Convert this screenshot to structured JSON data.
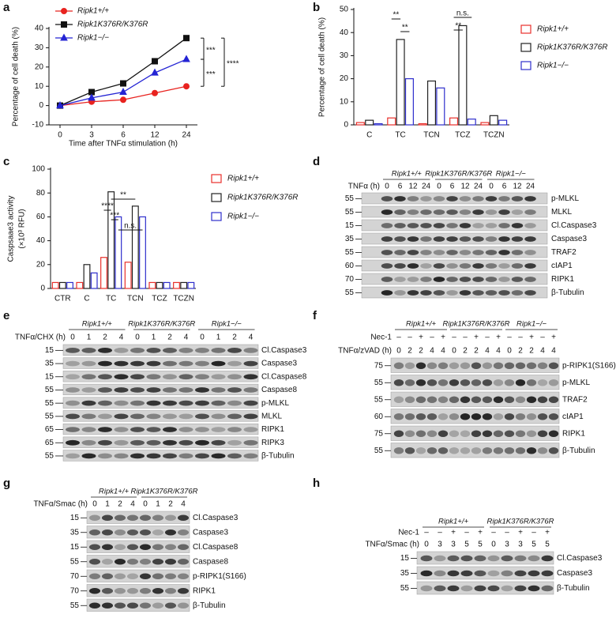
{
  "chart_data": [
    {
      "type": "line",
      "panel": "a",
      "x_label": "Time after TNFα stimulation (h)",
      "y_label": [
        "Percentage of cell death (%)"
      ],
      "categories": [
        "0",
        "3",
        "6",
        "12",
        "24"
      ],
      "ylim": [
        -10,
        40
      ],
      "yticks": [
        -10,
        0,
        10,
        20,
        30,
        40
      ],
      "series": [
        {
          "name": "Ripk1+/+",
          "color": "#e8231f",
          "marker": "circle",
          "values": [
            0,
            2,
            3,
            6.5,
            10
          ]
        },
        {
          "name": "Ripk1K376R/K376R",
          "color": "#111111",
          "marker": "square",
          "values": [
            0,
            7,
            11.5,
            23,
            35
          ]
        },
        {
          "name": "Ripk1−/−",
          "color": "#2424d4",
          "marker": "triangle",
          "values": [
            0,
            4,
            7,
            17,
            24
          ]
        }
      ],
      "annotations": [
        "***",
        "****",
        "***"
      ]
    },
    {
      "type": "bar",
      "panel": "b",
      "y_label": [
        "Percentage of cell death (%)"
      ],
      "categories": [
        "C",
        "TC",
        "TCN",
        "TCZ",
        "TCZN"
      ],
      "ylim": [
        0,
        50
      ],
      "yticks": [
        0,
        10,
        20,
        30,
        40,
        50
      ],
      "series": [
        {
          "name": "Ripk1+/+",
          "color": "#e8302b",
          "values": [
            1,
            3,
            0.5,
            3,
            1
          ]
        },
        {
          "name": "Ripk1K376R/K376R",
          "color": "#222222",
          "values": [
            2,
            37,
            19,
            43,
            4
          ]
        },
        {
          "name": "Ripk1−/−",
          "color": "#2e2ecc",
          "values": [
            0.5,
            20,
            16,
            2.5,
            2
          ]
        }
      ],
      "annotations": [
        "**",
        "**",
        "n.s.",
        "**"
      ]
    },
    {
      "type": "bar",
      "panel": "c",
      "y_label": [
        "Caspsaae3 activity",
        "(×10³ RFU)"
      ],
      "categories": [
        "CTR",
        "C",
        "TC",
        "TCN",
        "TCZ",
        "TCZN"
      ],
      "ylim": [
        0,
        100
      ],
      "yticks": [
        0,
        20,
        40,
        60,
        80,
        100
      ],
      "series": [
        {
          "name": "Ripk1+/+",
          "color": "#e8302b",
          "values": [
            5,
            5,
            26,
            22,
            5,
            5
          ]
        },
        {
          "name": "Ripk1K376R/K376R",
          "color": "#222222",
          "values": [
            5,
            20,
            81,
            69,
            5,
            5
          ]
        },
        {
          "name": "Ripk1−/−",
          "color": "#2e2ecc",
          "values": [
            5,
            13,
            60,
            60,
            5,
            5
          ]
        }
      ],
      "annotations": [
        "**",
        "****",
        "***",
        "n.s."
      ]
    }
  ],
  "blots": [
    {
      "panel": "d",
      "groups": [
        "Ripk1+/+",
        "Ripk1K376R/K376R",
        "Ripk1−/−"
      ],
      "conditions": [
        {
          "label": "TNFα (h)",
          "lanes": [
            "0",
            "6",
            "12",
            "24",
            "0",
            "6",
            "12",
            "24",
            "0",
            "6",
            "12",
            "24"
          ]
        }
      ],
      "rows": [
        {
          "marker": 55,
          "label": "p-MLKL"
        },
        {
          "marker": 55,
          "label": "MLKL"
        },
        {
          "marker": 15,
          "label": "Cl.Caspase3"
        },
        {
          "marker": 35,
          "label": "Caspase3"
        },
        {
          "marker": 55,
          "label": "TRAF2"
        },
        {
          "marker": 60,
          "label": "cIAP1"
        },
        {
          "marker": 70,
          "label": "RIPK1"
        },
        {
          "marker": 55,
          "label": "β-Tubulin"
        }
      ]
    },
    {
      "panel": "e",
      "groups": [
        "Ripk1+/+",
        "Ripk1K376R/K376R",
        "Ripk1−/−"
      ],
      "conditions": [
        {
          "label": "TNFα/CHX (h)",
          "lanes": [
            "0",
            "1",
            "2",
            "4",
            "0",
            "1",
            "2",
            "4",
            "0",
            "1",
            "2",
            "4"
          ]
        }
      ],
      "rows": [
        {
          "marker": 15,
          "label": "Cl.Caspase3"
        },
        {
          "marker": 35,
          "label": "Caspase3"
        },
        {
          "marker": 15,
          "label": "Cl.Caspase8"
        },
        {
          "marker": 55,
          "label": "Caspase8"
        },
        {
          "marker": 55,
          "label": "p-MLKL"
        },
        {
          "marker": 55,
          "label": "MLKL"
        },
        {
          "marker": 65,
          "label": "RIPK1"
        },
        {
          "marker": 65,
          "label": "RIPK3"
        },
        {
          "marker": 55,
          "label": "β-Tubulin"
        }
      ]
    },
    {
      "panel": "f",
      "groups": [
        "Ripk1+/+",
        "Ripk1K376R/K376R",
        "Ripk1−/−"
      ],
      "conditions": [
        {
          "label": "Nec-1",
          "lanes": [
            "–",
            "–",
            "+",
            "–",
            "+",
            "–",
            "–",
            "+",
            "–",
            "+",
            "–",
            "–",
            "+",
            "–",
            "+"
          ]
        },
        {
          "label": "TNFα/zVAD (h)",
          "lanes": [
            "0",
            "2",
            "2",
            "4",
            "4",
            "0",
            "2",
            "2",
            "4",
            "4",
            "0",
            "2",
            "2",
            "4",
            "4"
          ]
        }
      ],
      "rows": [
        {
          "marker": 75,
          "label": "p-RIPK1(S166)"
        },
        {
          "marker": 55,
          "label": "p-MLKL"
        },
        {
          "marker": 55,
          "label": "TRAF2"
        },
        {
          "marker": 60,
          "label": "cIAP1"
        },
        {
          "marker": 75,
          "label": "RIPK1"
        },
        {
          "marker": 55,
          "label": "β-Tubulin"
        }
      ]
    },
    {
      "panel": "g",
      "groups": [
        "Ripk1+/+",
        "Ripk1K376R/K376R"
      ],
      "conditions": [
        {
          "label": "TNFα/Smac (h)",
          "lanes": [
            "0",
            "1",
            "2",
            "4",
            "0",
            "1",
            "2",
            "4"
          ]
        }
      ],
      "rows": [
        {
          "marker": 15,
          "label": "Cl.Caspase3"
        },
        {
          "marker": 35,
          "label": "Caspase3"
        },
        {
          "marker": 15,
          "label": "Cl.Caspase8"
        },
        {
          "marker": 55,
          "label": "Caspase8"
        },
        {
          "marker": 70,
          "label": "p-RIPK1(S166)"
        },
        {
          "marker": 70,
          "label": "RIPK1"
        },
        {
          "marker": 55,
          "label": "β-Tubulin"
        }
      ]
    },
    {
      "panel": "h",
      "groups": [
        "Ripk1+/+",
        "Ripk1K376R/K376R"
      ],
      "conditions": [
        {
          "label": "Nec-1",
          "lanes": [
            "–",
            "–",
            "+",
            "–",
            "+",
            "–",
            "–",
            "+",
            "–",
            "+"
          ]
        },
        {
          "label": "TNFα/Smac (h)",
          "lanes": [
            "0",
            "3",
            "3",
            "5",
            "5",
            "0",
            "3",
            "3",
            "5",
            "5"
          ]
        }
      ],
      "rows": [
        {
          "marker": 15,
          "label": "Cl.Caspase3"
        },
        {
          "marker": 35,
          "label": "Caspase3"
        },
        {
          "marker": 55,
          "label": "β-Tubulin"
        }
      ]
    }
  ]
}
